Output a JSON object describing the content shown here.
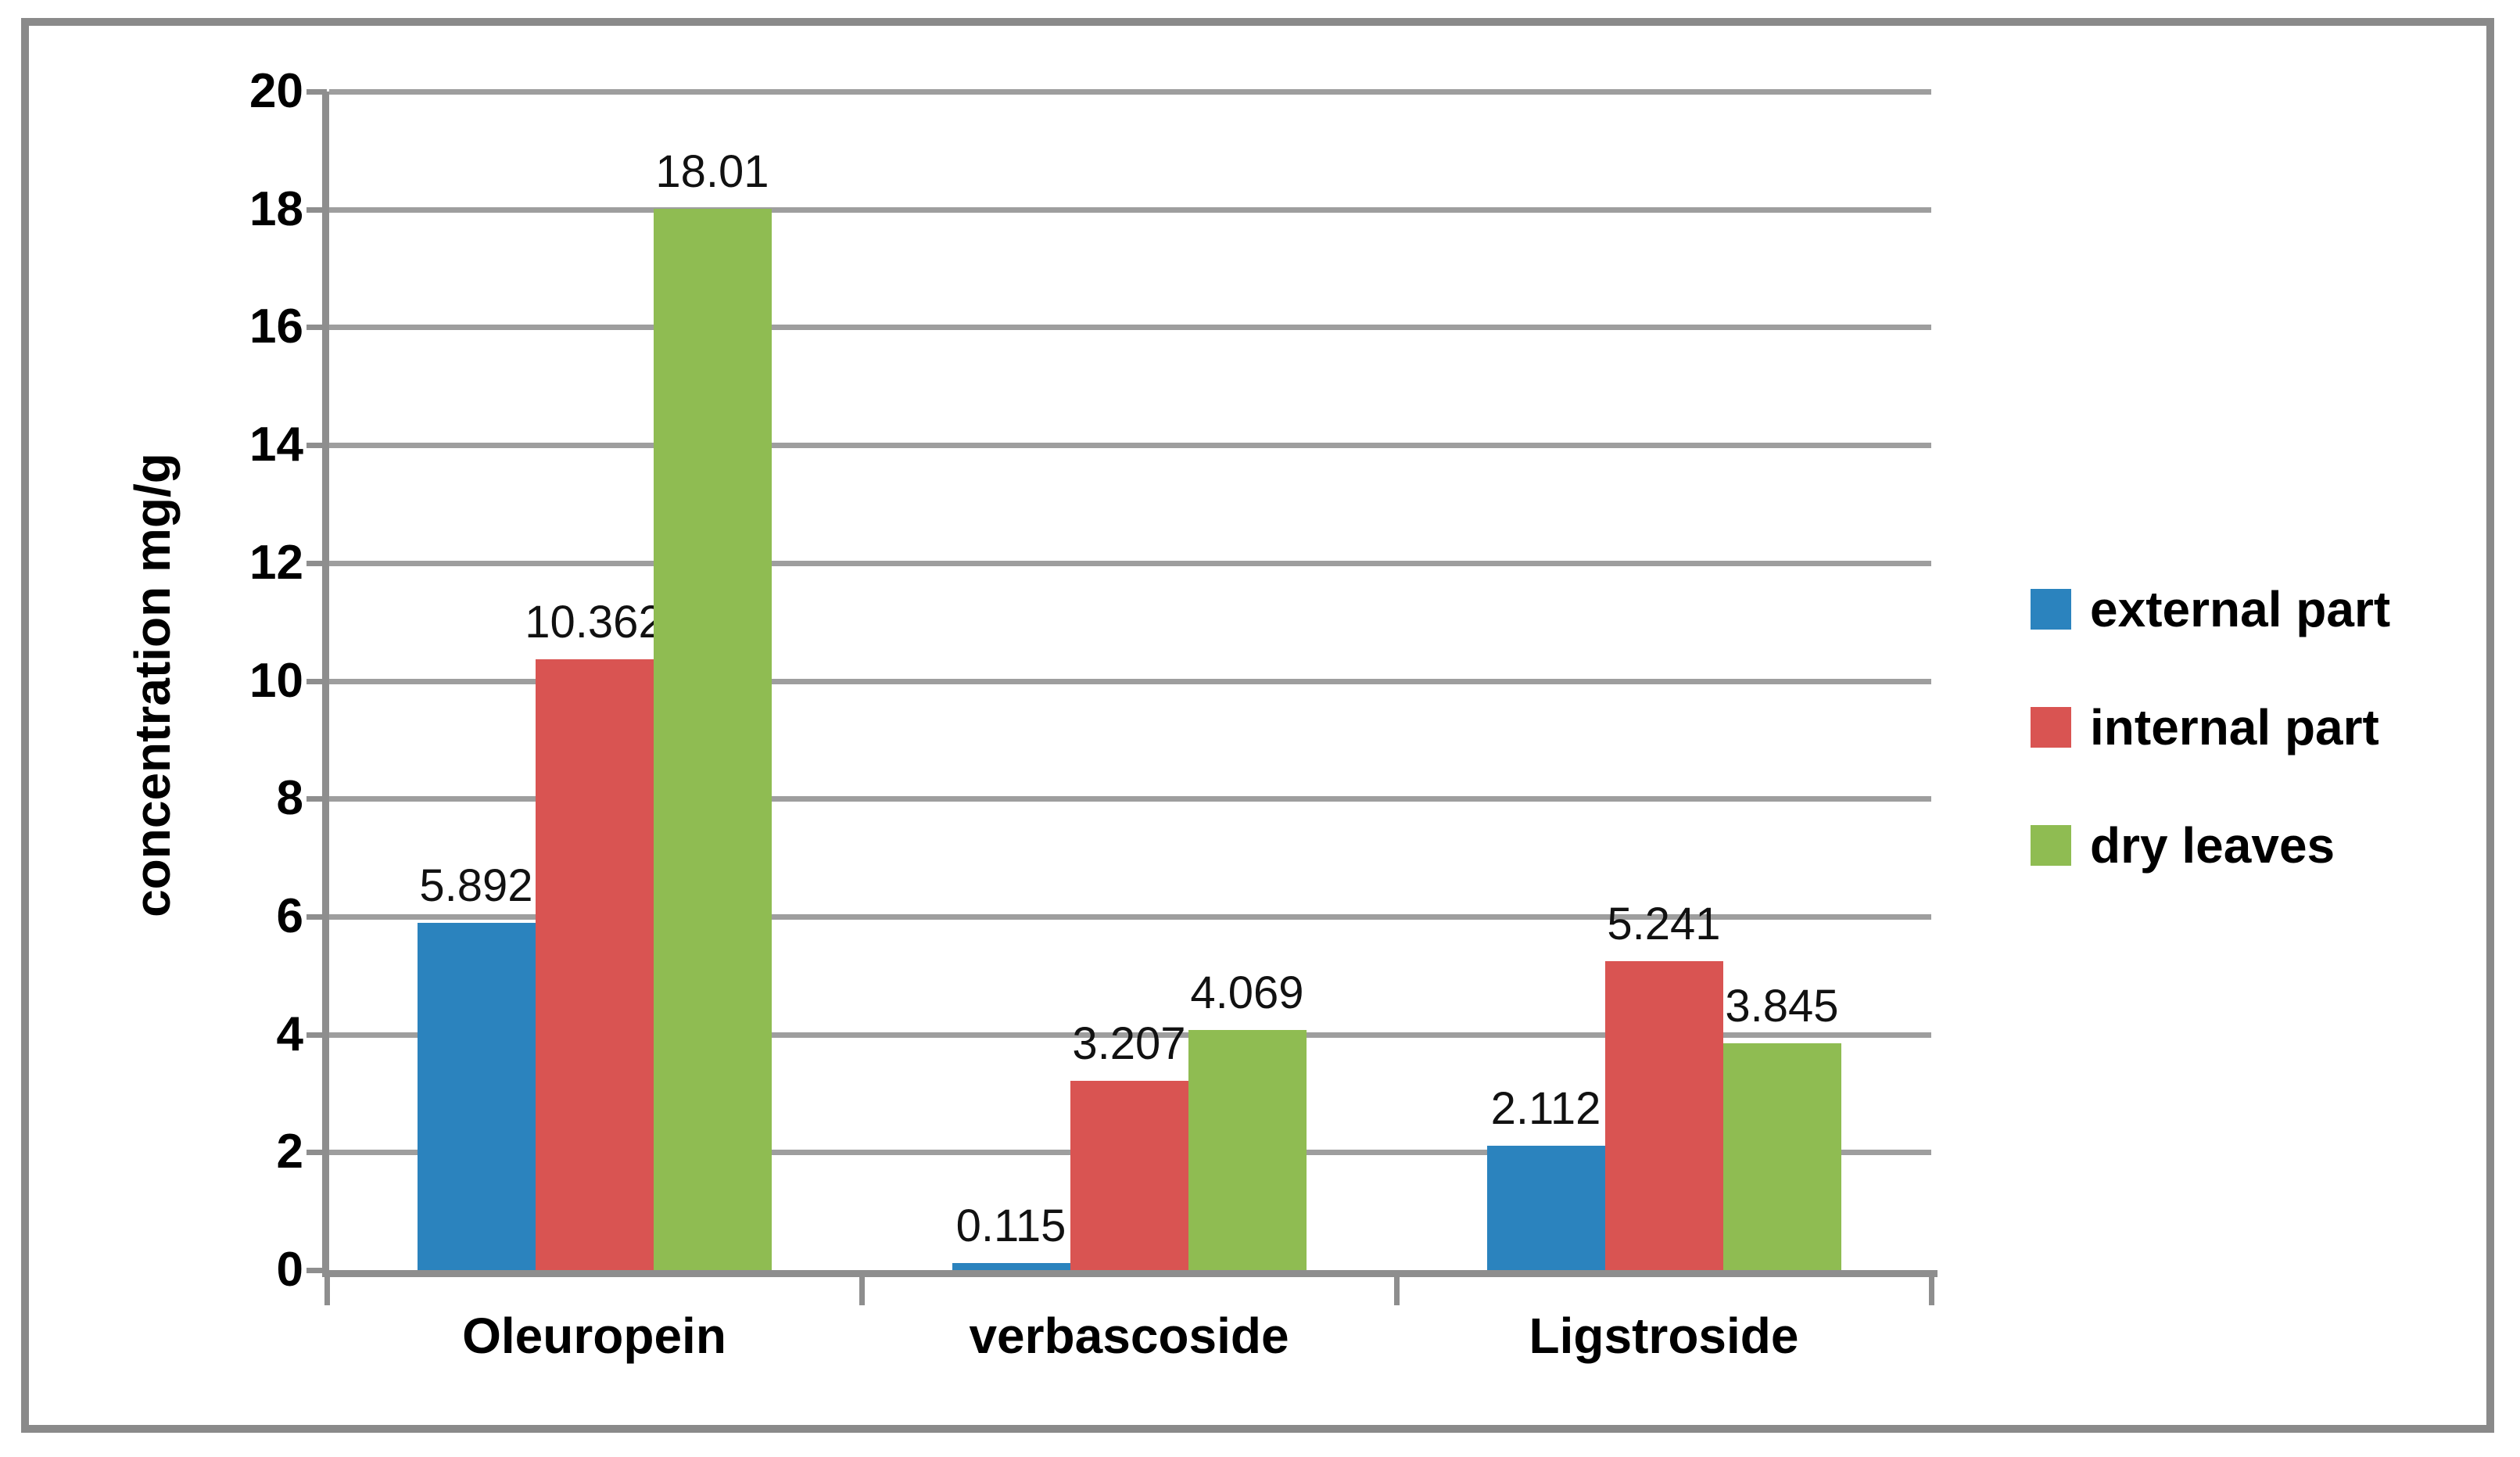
{
  "chart_data": {
    "type": "bar",
    "title": "",
    "xlabel": "",
    "ylabel": "concentration mg/g",
    "categories": [
      "Oleuropein",
      "verbascoside",
      "Ligstroside"
    ],
    "series": [
      {
        "name": "external part",
        "color": "#2B83BE",
        "values": [
          5.892,
          0.115,
          2.112
        ],
        "value_labels": [
          "5.892",
          "0.115",
          "2.112"
        ]
      },
      {
        "name": "internal part",
        "color": "#D95452",
        "values": [
          10.362,
          3.207,
          5.241
        ],
        "value_labels": [
          "10.362",
          "3.207",
          "5.241"
        ]
      },
      {
        "name": "dry leaves",
        "color": "#8FBC52",
        "values": [
          18.01,
          4.069,
          3.845
        ],
        "value_labels": [
          "18.01",
          "4.069",
          "3.845"
        ]
      }
    ],
    "ylim": [
      0,
      20
    ],
    "y_tick_step": 2,
    "y_tick_labels": [
      "0",
      "2",
      "4",
      "6",
      "8",
      "10",
      "12",
      "14",
      "16",
      "18",
      "20"
    ],
    "grid": true,
    "legend_position": "right",
    "colors": {
      "gridline": "#9E9E9E",
      "axis": "#8E8E8E",
      "frame": "#8A8A8A",
      "text": "#000000"
    }
  }
}
